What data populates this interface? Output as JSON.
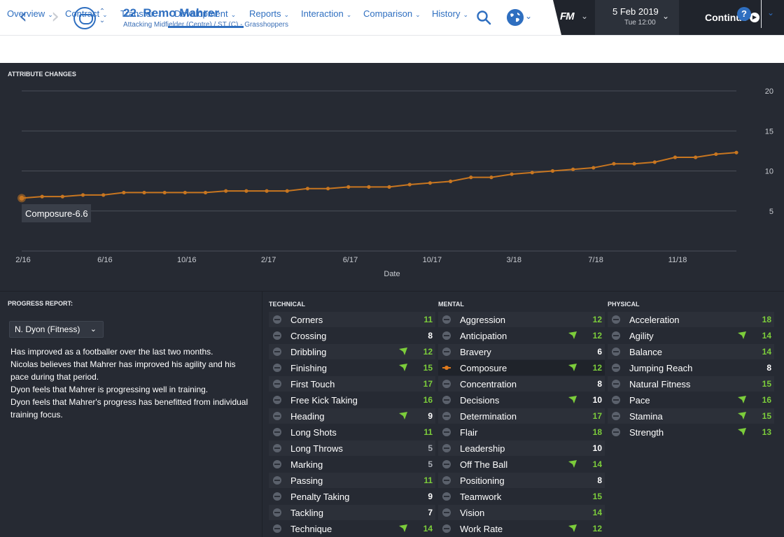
{
  "header": {
    "player_name": "22. Remo Mahrer",
    "player_subtitle": "Attacking Midfielder (Centre) / ST (C) - Grasshoppers",
    "fm_logo": "FM",
    "date": "5 Feb 2019",
    "time": "Tue 12:00",
    "continue_label": "Continue"
  },
  "tabs": [
    {
      "label": "Overview"
    },
    {
      "label": "Contract"
    },
    {
      "label": "Transfer"
    },
    {
      "label": "Development",
      "active": true
    },
    {
      "label": "Reports"
    },
    {
      "label": "Interaction"
    },
    {
      "label": "Comparison"
    },
    {
      "label": "History"
    }
  ],
  "help_label": "?",
  "chart_section_title": "ATTRIBUTE CHANGES",
  "chart_data": {
    "type": "line",
    "xlabel": "Date",
    "ylabel": "",
    "ylim": [
      0,
      20
    ],
    "yticks": [
      5,
      10,
      15,
      20
    ],
    "x_tick_labels": [
      "2/16",
      "6/16",
      "10/16",
      "2/17",
      "6/17",
      "10/17",
      "3/18",
      "7/18",
      "11/18"
    ],
    "grid": true,
    "color": "#c87620",
    "series": [
      {
        "name": "Composure",
        "values": [
          6.6,
          6.8,
          6.8,
          7.0,
          7.0,
          7.3,
          7.3,
          7.3,
          7.3,
          7.3,
          7.5,
          7.5,
          7.5,
          7.5,
          7.8,
          7.8,
          8.0,
          8.0,
          8.0,
          8.3,
          8.5,
          8.7,
          9.2,
          9.2,
          9.6,
          9.8,
          10.0,
          10.2,
          10.4,
          10.9,
          10.9,
          11.1,
          11.7,
          11.7,
          12.1,
          12.3
        ]
      }
    ],
    "tooltip": "Composure-6.6"
  },
  "progress": {
    "title": "PROGRESS REPORT:",
    "coach": "N. Dyon (Fitness)",
    "lines": [
      "Has improved as a footballer over the last two months.",
      "Nicolas believes that Mahrer has improved his agility and his pace during that period.",
      "Dyon feels that Mahrer is progressing well in training.",
      "Dyon feels that Mahrer's progress has benefitted from individual training focus."
    ]
  },
  "attributes": {
    "technical": {
      "title": "TECHNICAL",
      "items": [
        {
          "name": "Corners",
          "value": "11",
          "up": false,
          "color": "#7ccd3b"
        },
        {
          "name": "Crossing",
          "value": "8",
          "up": false,
          "color": "#ffffff"
        },
        {
          "name": "Dribbling",
          "value": "12",
          "up": true,
          "color": "#7ccd3b"
        },
        {
          "name": "Finishing",
          "value": "15",
          "up": true,
          "color": "#7ccd3b"
        },
        {
          "name": "First Touch",
          "value": "17",
          "up": false,
          "color": "#7ccd3b"
        },
        {
          "name": "Free Kick Taking",
          "value": "16",
          "up": false,
          "color": "#7ccd3b"
        },
        {
          "name": "Heading",
          "value": "9",
          "up": true,
          "color": "#ffffff"
        },
        {
          "name": "Long Shots",
          "value": "11",
          "up": false,
          "color": "#7ccd3b"
        },
        {
          "name": "Long Throws",
          "value": "5",
          "up": false,
          "color": "#a9adb5"
        },
        {
          "name": "Marking",
          "value": "5",
          "up": false,
          "color": "#a9adb5"
        },
        {
          "name": "Passing",
          "value": "11",
          "up": false,
          "color": "#7ccd3b"
        },
        {
          "name": "Penalty Taking",
          "value": "9",
          "up": false,
          "color": "#ffffff"
        },
        {
          "name": "Tackling",
          "value": "7",
          "up": false,
          "color": "#ffffff"
        },
        {
          "name": "Technique",
          "value": "14",
          "up": true,
          "color": "#7ccd3b"
        }
      ]
    },
    "mental": {
      "title": "MENTAL",
      "items": [
        {
          "name": "Aggression",
          "value": "12",
          "up": false,
          "color": "#7ccd3b"
        },
        {
          "name": "Anticipation",
          "value": "12",
          "up": true,
          "color": "#7ccd3b"
        },
        {
          "name": "Bravery",
          "value": "6",
          "up": false,
          "color": "#ffffff"
        },
        {
          "name": "Composure",
          "value": "12",
          "up": true,
          "color": "#7ccd3b",
          "selected": true
        },
        {
          "name": "Concentration",
          "value": "8",
          "up": false,
          "color": "#ffffff"
        },
        {
          "name": "Decisions",
          "value": "10",
          "up": true,
          "color": "#ffffff"
        },
        {
          "name": "Determination",
          "value": "17",
          "up": false,
          "color": "#7ccd3b"
        },
        {
          "name": "Flair",
          "value": "18",
          "up": false,
          "color": "#7ccd3b"
        },
        {
          "name": "Leadership",
          "value": "10",
          "up": false,
          "color": "#ffffff"
        },
        {
          "name": "Off The Ball",
          "value": "14",
          "up": true,
          "color": "#7ccd3b"
        },
        {
          "name": "Positioning",
          "value": "8",
          "up": false,
          "color": "#ffffff"
        },
        {
          "name": "Teamwork",
          "value": "15",
          "up": false,
          "color": "#7ccd3b"
        },
        {
          "name": "Vision",
          "value": "14",
          "up": false,
          "color": "#7ccd3b"
        },
        {
          "name": "Work Rate",
          "value": "12",
          "up": true,
          "color": "#7ccd3b"
        }
      ]
    },
    "physical": {
      "title": "PHYSICAL",
      "items": [
        {
          "name": "Acceleration",
          "value": "18",
          "up": false,
          "color": "#7ccd3b"
        },
        {
          "name": "Agility",
          "value": "14",
          "up": true,
          "color": "#7ccd3b"
        },
        {
          "name": "Balance",
          "value": "14",
          "up": false,
          "color": "#7ccd3b"
        },
        {
          "name": "Jumping Reach",
          "value": "8",
          "up": false,
          "color": "#ffffff"
        },
        {
          "name": "Natural Fitness",
          "value": "15",
          "up": false,
          "color": "#7ccd3b"
        },
        {
          "name": "Pace",
          "value": "16",
          "up": true,
          "color": "#7ccd3b"
        },
        {
          "name": "Stamina",
          "value": "15",
          "up": true,
          "color": "#7ccd3b"
        },
        {
          "name": "Strength",
          "value": "13",
          "up": true,
          "color": "#7ccd3b"
        }
      ]
    }
  }
}
